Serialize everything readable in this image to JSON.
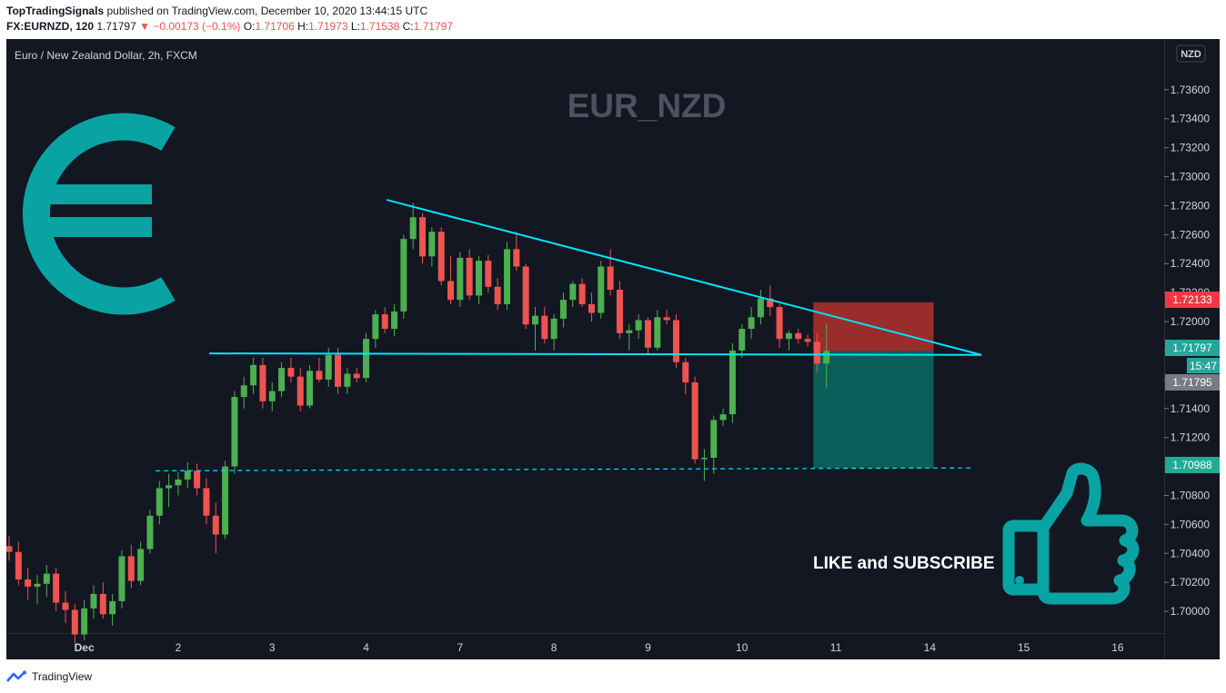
{
  "header": {
    "publisher": "TopTradingSignals",
    "published_text": "published on TradingView.com, December 10, 2020 13:44:15 UTC",
    "symbol": "FX:EURNZD, 120",
    "last": "1.71797",
    "change": "▼ −0.00173 (−0.1%)",
    "o_label": "O:",
    "o": "1.71706",
    "h_label": "H:",
    "h": "1.71973",
    "l_label": "L:",
    "l": "1.71538",
    "c_label": "C:",
    "c": "1.71797"
  },
  "chart": {
    "legend": "Euro / New Zealand Dollar, 2h, FXCM",
    "watermark": "EUR_NZD",
    "currency_button": "NZD",
    "cta": "LIKE and SUBSCRIBE"
  },
  "price_badges": {
    "stop": "1.72133",
    "current": "1.71797",
    "countdown": "15:47",
    "bid": "1.71795",
    "target": "1.70988"
  },
  "footer": {
    "brand": "TradingView"
  },
  "colors": {
    "background": "#131722",
    "up": "#26a69a",
    "up_body": "#4caf50",
    "down": "#ef5350",
    "trendline": "#00e5ff",
    "stop_zone": "#b2312d",
    "target_zone": "#0a6b64",
    "icon": "#0aa3a3"
  },
  "chart_data": {
    "type": "candlestick",
    "symbol": "EURNZD",
    "timeframe": "2h",
    "ylim": [
      1.6985,
      1.7395
    ],
    "y_ticks": [
      1.736,
      1.734,
      1.732,
      1.73,
      1.728,
      1.726,
      1.724,
      1.722,
      1.72,
      1.718,
      1.716,
      1.714,
      1.712,
      1.71,
      1.708,
      1.706,
      1.704,
      1.702,
      1.7
    ],
    "y_tick_labels": [
      "1.73600",
      "1.73400",
      "1.73200",
      "1.73000",
      "1.72800",
      "1.72600",
      "1.72400",
      "1.72200",
      "1.72000",
      "1.71800",
      "1.71600",
      "1.71400",
      "1.71200",
      "1.71000",
      "1.70800",
      "1.70600",
      "1.70400",
      "1.70200",
      "1.70000"
    ],
    "x_ticks": [
      "Dec",
      "2",
      "3",
      "4",
      "7",
      "8",
      "9",
      "10",
      "11",
      "14",
      "15",
      "16"
    ],
    "x_tick_index": [
      8,
      18,
      28,
      38,
      48,
      58,
      68,
      78,
      88,
      98,
      108,
      118
    ],
    "candles_per_day": 10,
    "candles": [
      [
        1.7045,
        1.7052,
        1.7035,
        1.7041
      ],
      [
        1.7041,
        1.7048,
        1.7018,
        1.7022
      ],
      [
        1.7022,
        1.703,
        1.7008,
        1.7017
      ],
      [
        1.7017,
        1.7025,
        1.7005,
        1.7019
      ],
      [
        1.7019,
        1.7032,
        1.701,
        1.7026
      ],
      [
        1.7026,
        1.703,
        1.7,
        1.7006
      ],
      [
        1.7006,
        1.7014,
        1.6992,
        1.7001
      ],
      [
        1.7001,
        1.7005,
        1.6978,
        1.6984
      ],
      [
        1.6984,
        1.7008,
        1.698,
        1.7002
      ],
      [
        1.7002,
        1.7018,
        1.6995,
        1.7012
      ],
      [
        1.7012,
        1.702,
        1.6995,
        1.6998
      ],
      [
        1.6998,
        1.7012,
        1.699,
        1.7007
      ],
      [
        1.7007,
        1.7042,
        1.7002,
        1.7038
      ],
      [
        1.7038,
        1.7046,
        1.7016,
        1.7021
      ],
      [
        1.7021,
        1.7048,
        1.7018,
        1.7043
      ],
      [
        1.7043,
        1.707,
        1.704,
        1.7066
      ],
      [
        1.7066,
        1.709,
        1.706,
        1.7085
      ],
      [
        1.7085,
        1.7095,
        1.7072,
        1.7087
      ],
      [
        1.7087,
        1.7096,
        1.708,
        1.7091
      ],
      [
        1.7091,
        1.7103,
        1.7085,
        1.7097
      ],
      [
        1.7097,
        1.7102,
        1.708,
        1.7085
      ],
      [
        1.7085,
        1.7092,
        1.706,
        1.7066
      ],
      [
        1.7066,
        1.7075,
        1.704,
        1.7053
      ],
      [
        1.7053,
        1.7104,
        1.705,
        1.71
      ],
      [
        1.71,
        1.7152,
        1.7095,
        1.7148
      ],
      [
        1.7148,
        1.7162,
        1.714,
        1.7156
      ],
      [
        1.7156,
        1.7175,
        1.715,
        1.717
      ],
      [
        1.717,
        1.7175,
        1.714,
        1.7145
      ],
      [
        1.7145,
        1.7158,
        1.7138,
        1.7152
      ],
      [
        1.7152,
        1.7172,
        1.7148,
        1.7168
      ],
      [
        1.7168,
        1.7175,
        1.7158,
        1.7162
      ],
      [
        1.7162,
        1.7168,
        1.7138,
        1.7142
      ],
      [
        1.7142,
        1.717,
        1.714,
        1.7166
      ],
      [
        1.7166,
        1.7175,
        1.7158,
        1.716
      ],
      [
        1.716,
        1.7182,
        1.7155,
        1.7177
      ],
      [
        1.7177,
        1.7182,
        1.715,
        1.7155
      ],
      [
        1.7155,
        1.7168,
        1.715,
        1.7164
      ],
      [
        1.7164,
        1.7168,
        1.7158,
        1.7161
      ],
      [
        1.7161,
        1.7192,
        1.7158,
        1.7188
      ],
      [
        1.7188,
        1.7208,
        1.7182,
        1.7205
      ],
      [
        1.7205,
        1.721,
        1.7192,
        1.7195
      ],
      [
        1.7195,
        1.7212,
        1.719,
        1.7207
      ],
      [
        1.7207,
        1.726,
        1.7202,
        1.7257
      ],
      [
        1.7257,
        1.7282,
        1.725,
        1.7272
      ],
      [
        1.7272,
        1.7275,
        1.724,
        1.7245
      ],
      [
        1.7245,
        1.7265,
        1.7238,
        1.7262
      ],
      [
        1.7262,
        1.7265,
        1.7225,
        1.7228
      ],
      [
        1.7228,
        1.7245,
        1.7212,
        1.7215
      ],
      [
        1.7215,
        1.7248,
        1.721,
        1.7244
      ],
      [
        1.7244,
        1.725,
        1.7215,
        1.7218
      ],
      [
        1.7218,
        1.7245,
        1.7212,
        1.7242
      ],
      [
        1.7242,
        1.7246,
        1.722,
        1.7224
      ],
      [
        1.7224,
        1.723,
        1.7208,
        1.7212
      ],
      [
        1.7212,
        1.7255,
        1.7208,
        1.725
      ],
      [
        1.725,
        1.7262,
        1.7235,
        1.7238
      ],
      [
        1.7238,
        1.724,
        1.7195,
        1.7198
      ],
      [
        1.7198,
        1.721,
        1.718,
        1.7204
      ],
      [
        1.7204,
        1.721,
        1.7185,
        1.7188
      ],
      [
        1.7188,
        1.7205,
        1.718,
        1.7202
      ],
      [
        1.7202,
        1.722,
        1.7196,
        1.7215
      ],
      [
        1.7215,
        1.7228,
        1.721,
        1.7226
      ],
      [
        1.7226,
        1.723,
        1.721,
        1.7212
      ],
      [
        1.7212,
        1.722,
        1.72,
        1.7206
      ],
      [
        1.7206,
        1.7242,
        1.7202,
        1.7238
      ],
      [
        1.7238,
        1.725,
        1.7218,
        1.7222
      ],
      [
        1.7222,
        1.7228,
        1.7188,
        1.7192
      ],
      [
        1.7192,
        1.7198,
        1.718,
        1.7194
      ],
      [
        1.7194,
        1.7205,
        1.7188,
        1.7201
      ],
      [
        1.7201,
        1.7203,
        1.7178,
        1.7182
      ],
      [
        1.7182,
        1.7208,
        1.718,
        1.7203
      ],
      [
        1.7203,
        1.7208,
        1.7198,
        1.7201
      ],
      [
        1.7201,
        1.7205,
        1.7168,
        1.7172
      ],
      [
        1.7172,
        1.7175,
        1.715,
        1.7158
      ],
      [
        1.7158,
        1.7162,
        1.7102,
        1.7105
      ],
      [
        1.7105,
        1.7112,
        1.709,
        1.7106
      ],
      [
        1.7106,
        1.7135,
        1.7095,
        1.7132
      ],
      [
        1.7132,
        1.714,
        1.7128,
        1.7136
      ],
      [
        1.7136,
        1.7185,
        1.713,
        1.718
      ],
      [
        1.718,
        1.7198,
        1.7175,
        1.7195
      ],
      [
        1.7195,
        1.721,
        1.7188,
        1.7203
      ],
      [
        1.7203,
        1.7222,
        1.7198,
        1.7216
      ],
      [
        1.7216,
        1.7225,
        1.7204,
        1.721
      ],
      [
        1.721,
        1.7212,
        1.7182,
        1.7188
      ],
      [
        1.7188,
        1.7194,
        1.718,
        1.7192
      ],
      [
        1.7192,
        1.7195,
        1.7185,
        1.7188
      ],
      [
        1.7188,
        1.7191,
        1.7183,
        1.7186
      ],
      [
        1.7186,
        1.7192,
        1.7165,
        1.7171
      ],
      [
        1.7171,
        1.7198,
        1.7154,
        1.71797
      ]
    ],
    "trendlines": [
      {
        "from": [
          40.2,
          1.7284
        ],
        "to": [
          103.5,
          1.7177
        ]
      },
      {
        "from": [
          21.3,
          1.7178
        ],
        "to": [
          103.5,
          1.7177
        ]
      }
    ],
    "support_line": {
      "from": [
        15.6,
        1.7097
      ],
      "to": [
        102.5,
        1.7099
      ]
    },
    "position": {
      "side": "short",
      "entry": 1.71797,
      "stop": 1.72133,
      "target": 1.70988,
      "start_index": 85.6,
      "end_index": 98.4
    }
  }
}
